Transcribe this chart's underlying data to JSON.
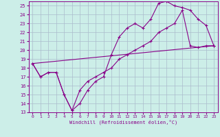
{
  "xlabel": "Windchill (Refroidissement éolien,°C)",
  "bg_color": "#cceee8",
  "grid_color": "#aabbcc",
  "line_color": "#880088",
  "xlim": [
    -0.5,
    23.5
  ],
  "ylim": [
    13,
    25.5
  ],
  "xticks": [
    0,
    1,
    2,
    3,
    4,
    5,
    6,
    7,
    8,
    9,
    10,
    11,
    12,
    13,
    14,
    15,
    16,
    17,
    18,
    19,
    20,
    21,
    22,
    23
  ],
  "yticks": [
    13,
    14,
    15,
    16,
    17,
    18,
    19,
    20,
    21,
    22,
    23,
    24,
    25
  ],
  "line1_x": [
    0,
    1,
    2,
    3,
    4,
    5,
    6,
    7,
    8,
    9,
    10,
    11,
    12,
    13,
    14,
    15,
    16,
    17,
    18,
    19,
    20,
    21,
    22,
    23
  ],
  "line1_y": [
    18.5,
    17.0,
    17.5,
    17.5,
    15.0,
    13.2,
    14.0,
    15.5,
    16.5,
    17.0,
    19.5,
    21.5,
    22.5,
    23.0,
    22.5,
    23.5,
    25.3,
    25.5,
    25.0,
    24.8,
    24.5,
    23.5,
    22.8,
    20.5
  ],
  "line2_x": [
    0,
    1,
    2,
    3,
    4,
    5,
    6,
    7,
    8,
    9,
    10,
    11,
    12,
    13,
    14,
    15,
    16,
    17,
    18,
    19,
    20,
    21,
    22,
    23
  ],
  "line2_y": [
    18.5,
    17.0,
    17.5,
    17.5,
    15.0,
    13.2,
    15.5,
    16.5,
    17.0,
    17.5,
    18.0,
    19.0,
    19.5,
    20.0,
    20.5,
    21.0,
    22.0,
    22.5,
    23.0,
    24.5,
    20.5,
    20.3,
    20.5,
    20.5
  ],
  "line3_x": [
    0,
    23
  ],
  "line3_y": [
    18.5,
    20.5
  ]
}
